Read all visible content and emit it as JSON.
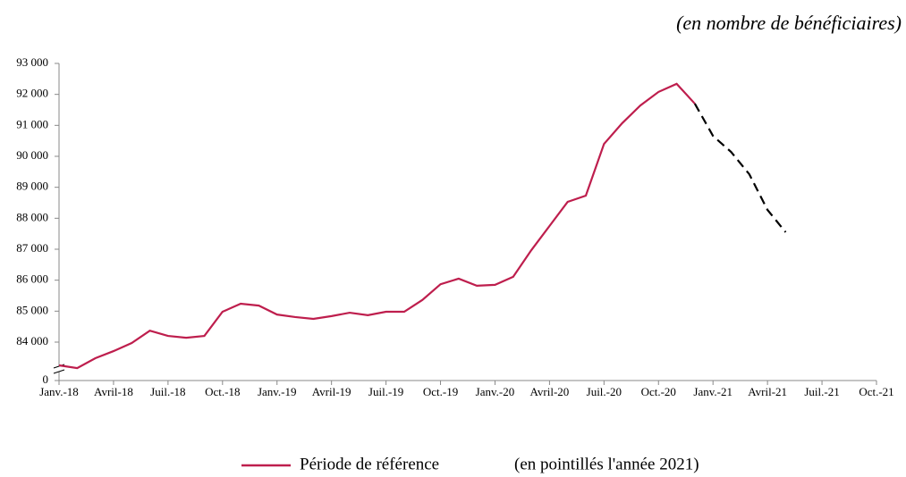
{
  "chart_data": {
    "type": "line",
    "subtitle": "(en nombre de bénéficiaires)",
    "categories": [
      "Janv.-18",
      null,
      null,
      "Avril-18",
      null,
      null,
      "Juil.-18",
      null,
      null,
      "Oct.-18",
      null,
      null,
      "Janv.-19",
      null,
      null,
      "Avril-19",
      null,
      null,
      "Juil.-19",
      null,
      null,
      "Oct.-19",
      null,
      null,
      "Janv.-20",
      null,
      null,
      "Avril-20",
      null,
      null,
      "Juil.-20",
      null,
      null,
      "Oct.-20",
      null,
      null,
      "Janv.-21",
      null,
      null,
      "Avril-21",
      null,
      null,
      "Juil.-21",
      null,
      null,
      "Oct.-21"
    ],
    "series": [
      {
        "name": "Période de référence",
        "color": "#be1e4d",
        "values": [
          83250,
          83160,
          83480,
          83710,
          83970,
          84370,
          84200,
          84140,
          84200,
          84980,
          85240,
          85180,
          84890,
          84810,
          84750,
          84840,
          84950,
          84870,
          84980,
          84980,
          85360,
          85870,
          86050,
          85820,
          85850,
          86110,
          86970,
          87750,
          88530,
          88730,
          90400,
          91070,
          91640,
          92080,
          92340,
          91700,
          null,
          null,
          null,
          null,
          null,
          null,
          null,
          null,
          null,
          null
        ]
      },
      {
        "color": "#000000",
        "dashed": true,
        "values": [
          null,
          null,
          null,
          null,
          null,
          null,
          null,
          null,
          null,
          null,
          null,
          null,
          null,
          null,
          null,
          null,
          null,
          null,
          null,
          null,
          null,
          null,
          null,
          null,
          null,
          null,
          null,
          null,
          null,
          null,
          null,
          null,
          null,
          null,
          null,
          91700,
          90660,
          90140,
          89420,
          88270,
          87550,
          null,
          null,
          null,
          null,
          null
        ]
      }
    ],
    "legend_note": "(en pointillés l'année 2021)",
    "ylim": [
      0,
      93000
    ],
    "axis_break": true,
    "yticks": [
      0,
      {
        "value": 84000,
        "label": "84 000"
      },
      {
        "value": 85000,
        "label": "85 000"
      },
      {
        "value": 86000,
        "label": "86 000"
      },
      {
        "value": 87000,
        "label": "87 000"
      },
      {
        "value": 88000,
        "label": "88 000"
      },
      {
        "value": 89000,
        "label": "89 000"
      },
      {
        "value": 90000,
        "label": "90 000"
      },
      {
        "value": 91000,
        "label": "91 000"
      },
      {
        "value": 92000,
        "label": "92 000"
      },
      {
        "value": 93000,
        "label": "93 000"
      }
    ],
    "legend": "bottom"
  }
}
